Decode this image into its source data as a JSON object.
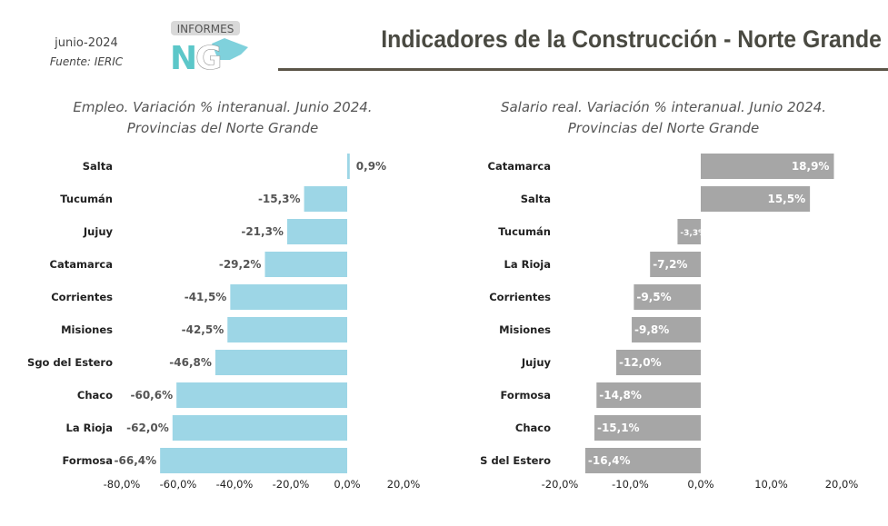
{
  "header": {
    "date": "junio-2024",
    "source": "Fuente: IERIC",
    "logo_text": "INFORMES NG",
    "title": "Indicadores de la Construcción - Norte  Grande"
  },
  "chart_data": [
    {
      "type": "bar",
      "orientation": "horizontal",
      "title_line1": "Empleo. Variación % interanual. Junio 2024.",
      "title_line2": "Provincias del Norte Grande",
      "categories": [
        "Salta",
        "Tucumán",
        "Jujuy",
        "Catamarca",
        "Corrientes",
        "Misiones",
        "Sgo del Estero",
        "Chaco",
        "La Rioja",
        "Formosa"
      ],
      "values": [
        0.9,
        -15.3,
        -21.3,
        -29.2,
        -41.5,
        -42.5,
        -46.8,
        -60.6,
        -62.0,
        -66.4
      ],
      "labels": [
        "0,9%",
        "-15,3%",
        "-21,3%",
        "-29,2%",
        "-41,5%",
        "-42,5%",
        "-46,8%",
        "-60,6%",
        "-62,0%",
        "-66,4%"
      ],
      "xlim": [
        -80,
        20
      ],
      "xticks": [
        -80,
        -60,
        -40,
        -20,
        0,
        20
      ],
      "xtick_labels": [
        "-80,0%",
        "-60,0%",
        "-40,0%",
        "-20,0%",
        "0,0%",
        "20,0%"
      ],
      "color": "#9dd6e6",
      "grid": false
    },
    {
      "type": "bar",
      "orientation": "horizontal",
      "title_line1": "Salario real. Variación % interanual. Junio 2024.",
      "title_line2": "Provincias del Norte Grande",
      "categories": [
        "Catamarca",
        "Salta",
        "Tucumán",
        "La Rioja",
        "Corrientes",
        "Misiones",
        "Jujuy",
        "Formosa",
        "Chaco",
        "S del Estero"
      ],
      "values": [
        18.9,
        15.5,
        -3.3,
        -7.2,
        -9.5,
        -9.8,
        -12.0,
        -14.8,
        -15.1,
        -16.4
      ],
      "labels": [
        "18,9%",
        "15,5%",
        "-3,3%",
        "-7,2%",
        "-9,5%",
        "-9,8%",
        "-12,0%",
        "-14,8%",
        "-15,1%",
        "-16,4%"
      ],
      "xlim": [
        -20,
        20
      ],
      "xticks": [
        -20,
        -10,
        0,
        10,
        20
      ],
      "xtick_labels": [
        "-20,0%",
        "-10,0%",
        "0,0%",
        "10,0%",
        "20,0%"
      ],
      "color": "#a6a6a6",
      "grid": false
    }
  ]
}
